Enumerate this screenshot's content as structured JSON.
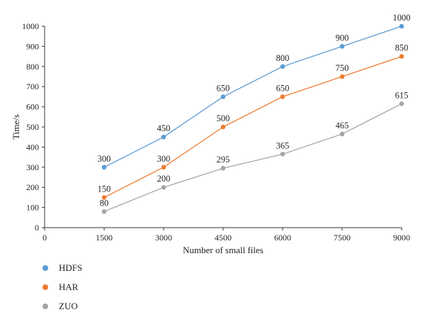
{
  "chart_data": {
    "type": "line",
    "x": [
      1500,
      3000,
      4500,
      6000,
      7500,
      9000
    ],
    "x_ticks": [
      "0",
      "1500",
      "3000",
      "4500",
      "6000",
      "7500",
      "9000"
    ],
    "y_ticks": [
      "0",
      "100",
      "200",
      "300",
      "400",
      "500",
      "600",
      "700",
      "800",
      "900",
      "1000"
    ],
    "xlim": [
      0,
      9000
    ],
    "ylim": [
      0,
      1000
    ],
    "xlabel": "Number of small files",
    "ylabel": "Time/s",
    "grid": false,
    "legend_position": "bottom-left",
    "series": [
      {
        "name": "HDFS",
        "color": "#5b9bd5",
        "values": [
          300,
          450,
          650,
          800,
          900,
          1000
        ],
        "labels": [
          "300",
          "450",
          "650",
          "800",
          "900",
          "1000"
        ]
      },
      {
        "name": "HAR",
        "color": "#ed7d31",
        "values": [
          150,
          300,
          500,
          650,
          750,
          850
        ],
        "labels": [
          "150",
          "300",
          "500",
          "650",
          "750",
          "850"
        ]
      },
      {
        "name": "ZUO",
        "color": "#a5a5a5",
        "values": [
          80,
          200,
          295,
          365,
          465,
          615
        ],
        "labels": [
          "80",
          "200",
          "295",
          "365",
          "465",
          "615"
        ]
      }
    ]
  }
}
